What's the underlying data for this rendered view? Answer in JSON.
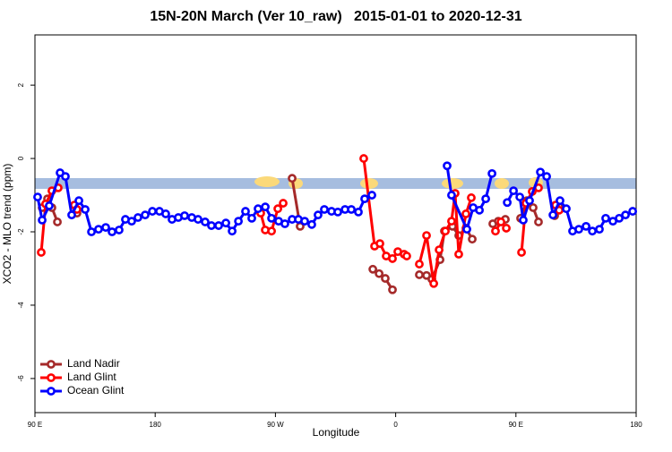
{
  "chart_data": {
    "type": "line",
    "title": "15N-20N March (Ver 10_raw)   2015-01-01 to 2020-12-31",
    "xlabel": "Longitude",
    "ylabel": "XCO2 - MLO trend (ppm)",
    "xlim": [
      90,
      540
    ],
    "ylim": [
      -6.93,
      3.37
    ],
    "xticks": [
      {
        "value": 90,
        "label": "90 E"
      },
      180,
      {
        "value": 270,
        "label": "90 W"
      },
      {
        "value": 360,
        "label": "0"
      },
      {
        "value": 450,
        "label": "90 E"
      },
      {
        "value": 540,
        "label": "180"
      }
    ],
    "yticks": [
      -6,
      -4,
      -2,
      0,
      2
    ],
    "legend": "bottom-left",
    "series": [
      {
        "name": "Land Nadir",
        "color": "#a52a2a",
        "x": [
          95.4,
          99.4,
          102.7,
          106.8,
          null,
          121.5,
          null,
          282.5,
          288.5,
          null,
          342.9,
          347.6,
          352.2,
          357.6,
          null,
          377.7,
          383.1,
          387.1,
          393.2,
          396.5,
          402.5,
          407.2,
          412.6,
          417.3,
          null,
          432.7,
          436.8,
          442.1,
          null,
          453.5,
          458.2,
          462.9,
          466.9,
          null,
          479.0,
          482.4
        ],
        "values": [
          -1.34,
          -1.1,
          -1.34,
          -1.73,
          null,
          -1.49,
          null,
          -0.54,
          -1.85,
          null,
          -3.02,
          -3.14,
          -3.27,
          -3.58,
          null,
          -3.17,
          -3.19,
          -3.29,
          -2.76,
          -1.98,
          -1.85,
          -2.1,
          -1.9,
          -2.2,
          null,
          -1.78,
          -1.71,
          -1.66,
          null,
          -1.63,
          -1.15,
          -1.34,
          -1.73,
          null,
          -1.56,
          -1.32
        ]
      },
      {
        "name": "Land Glint",
        "color": "#ff0000",
        "x": [
          94.7,
          98.0,
          102.7,
          107.4,
          null,
          119.5,
          121.5,
          null,
          259.0,
          262.4,
          267.1,
          271.8,
          275.8,
          null,
          336.1,
          344.2,
          348.2,
          352.9,
          357.6,
          361.6,
          366.3,
          368.3,
          null,
          377.7,
          383.1,
          388.5,
          392.5,
          397.2,
          401.8,
          404.5,
          407.2,
          412.6,
          416.6,
          null,
          434.7,
          438.8,
          442.8,
          null,
          454.2,
          457.5,
          462.2,
          466.9,
          null,
          479.7,
          482.4
        ],
        "values": [
          -2.56,
          -1.24,
          -0.88,
          -0.8,
          null,
          -1.27,
          -1.39,
          null,
          -1.49,
          -1.95,
          -1.98,
          -1.37,
          -1.22,
          null,
          0.0,
          -2.39,
          -2.32,
          -2.66,
          -2.73,
          -2.54,
          -2.61,
          -2.66,
          null,
          -2.88,
          -2.1,
          -3.41,
          -2.49,
          -1.98,
          -1.71,
          -0.95,
          -2.61,
          -1.51,
          -1.07,
          null,
          -1.98,
          -1.73,
          -1.9,
          null,
          -2.56,
          -1.22,
          -0.9,
          -0.8,
          null,
          -1.27,
          -1.41
        ]
      },
      {
        "name": "Ocean Glint",
        "color": "#0000ff",
        "x": [
          92.0,
          95.4,
          100.7,
          108.8,
          112.8,
          117.5,
          122.9,
          127.6,
          132.3,
          137.6,
          143.0,
          147.7,
          153.0,
          157.7,
          162.4,
          167.1,
          172.5,
          177.9,
          183.2,
          187.9,
          192.6,
          197.3,
          202.0,
          207.4,
          212.1,
          217.4,
          222.1,
          227.5,
          232.9,
          237.6,
          242.3,
          247.6,
          252.3,
          257.0,
          262.4,
          267.1,
          272.4,
          277.1,
          282.5,
          287.2,
          291.9,
          297.2,
          301.9,
          306.6,
          312.0,
          316.7,
          322.1,
          326.8,
          332.1,
          336.8,
          342.2,
          null,
          398.5,
          401.8,
          413.3,
          418.0,
          422.7,
          427.4,
          432.1,
          null,
          443.5,
          448.2,
          452.9,
          455.5,
          460.2,
          468.3,
          473.0,
          477.7,
          483.0,
          487.7,
          492.4,
          497.1,
          502.5,
          507.2,
          512.5,
          517.2,
          522.6,
          527.3,
          532.0,
          537.4
        ],
        "values": [
          -1.05,
          -1.68,
          -1.29,
          -0.39,
          -0.49,
          -1.54,
          -1.15,
          -1.39,
          -2.0,
          -1.93,
          -1.88,
          -2.0,
          -1.95,
          -1.66,
          -1.71,
          -1.61,
          -1.54,
          -1.44,
          -1.44,
          -1.51,
          -1.66,
          -1.61,
          -1.56,
          -1.61,
          -1.66,
          -1.73,
          -1.83,
          -1.83,
          -1.76,
          -1.98,
          -1.71,
          -1.44,
          -1.63,
          -1.37,
          -1.32,
          -1.63,
          -1.71,
          -1.78,
          -1.66,
          -1.66,
          -1.71,
          -1.8,
          -1.54,
          -1.39,
          -1.44,
          -1.46,
          -1.39,
          -1.39,
          -1.46,
          -1.1,
          -1.0,
          null,
          -0.2,
          -1.0,
          -1.93,
          -1.34,
          -1.41,
          -1.1,
          -0.41,
          null,
          -1.2,
          -0.88,
          -1.05,
          -1.68,
          -1.15,
          -0.37,
          -0.49,
          -1.54,
          -1.15,
          -1.37,
          -1.98,
          -1.93,
          -1.85,
          -1.98,
          -1.93,
          -1.63,
          -1.71,
          -1.63,
          -1.54,
          -1.44
        ]
      }
    ]
  }
}
